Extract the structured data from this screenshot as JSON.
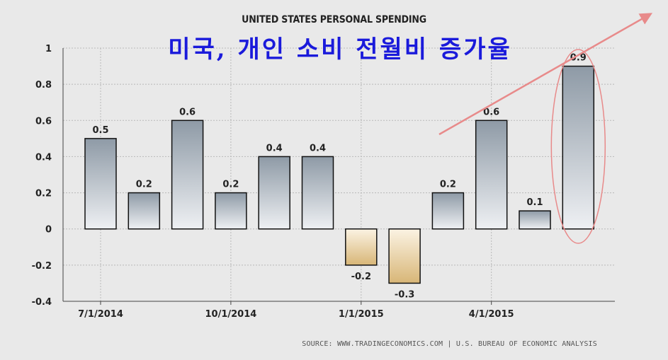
{
  "chart_data": {
    "type": "bar",
    "title": "UNITED STATES PERSONAL SPENDING",
    "subtitle": "미국, 개인 소비 전월비 증가율",
    "source": "SOURCE: WWW.TRADINGECONOMICS.COM | U.S. BUREAU OF ECONOMIC ANALYSIS",
    "categories": [
      "2014-07",
      "2014-08",
      "2014-09",
      "2014-10",
      "2014-11",
      "2014-12",
      "2015-01",
      "2015-02",
      "2015-03",
      "2015-04",
      "2015-05",
      "2015-06"
    ],
    "values": [
      0.5,
      0.2,
      0.6,
      0.2,
      0.4,
      0.4,
      -0.2,
      -0.3,
      0.2,
      0.6,
      0.1,
      0.9
    ],
    "data_labels": [
      "0.5",
      "0.2",
      "0.6",
      "0.2",
      "0.4",
      "0.4",
      "-0.2",
      "-0.3",
      "0.2",
      "0.6",
      "0.1",
      "0.9"
    ],
    "x_tick_labels": [
      "7/1/2014",
      "10/1/2014",
      "1/1/2015",
      "4/1/2015"
    ],
    "x_tick_categories": [
      "2014-07",
      "2014-10",
      "2015-01",
      "2015-04"
    ],
    "y_ticks": [
      1,
      0.8,
      0.6,
      0.4,
      0.2,
      0,
      -0.2,
      -0.4
    ],
    "y_tick_labels": [
      "1",
      "0.8",
      "0.6",
      "0.4",
      "0.2",
      "0",
      "-0.2",
      "-0.4"
    ],
    "ylim": [
      -0.4,
      1
    ],
    "grid": true,
    "xlabel": "",
    "ylabel": "",
    "colors": {
      "positive_top": "#8e9aa6",
      "positive_bottom": "#eef0f3",
      "negative_top": "#fbf3e3",
      "negative_bottom": "#d8b677",
      "bar_stroke": "#111111",
      "title_ko": "#1a1adb",
      "annotation": "#e88a8a"
    },
    "annotations": [
      {
        "kind": "ellipse",
        "around_category": "2015-06",
        "color": "#e88a8a"
      },
      {
        "kind": "trend-arrow",
        "direction": "up-right",
        "color": "#e88a8a"
      }
    ]
  }
}
